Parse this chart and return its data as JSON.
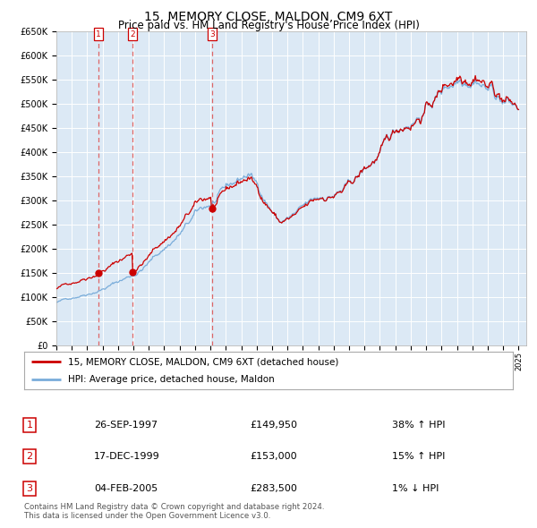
{
  "title": "15, MEMORY CLOSE, MALDON, CM9 6XT",
  "subtitle": "Price paid vs. HM Land Registry's House Price Index (HPI)",
  "title_fontsize": 10,
  "subtitle_fontsize": 8.5,
  "ylim": [
    0,
    650000
  ],
  "yticks": [
    0,
    50000,
    100000,
    150000,
    200000,
    250000,
    300000,
    350000,
    400000,
    450000,
    500000,
    550000,
    600000,
    650000
  ],
  "ytick_labels": [
    "£0",
    "£50K",
    "£100K",
    "£150K",
    "£200K",
    "£250K",
    "£300K",
    "£350K",
    "£400K",
    "£450K",
    "£500K",
    "£550K",
    "£600K",
    "£650K"
  ],
  "xlim_start": 1995.0,
  "xlim_end": 2025.5,
  "plot_bg_color": "#dce9f5",
  "grid_color": "#ffffff",
  "red_line_color": "#cc0000",
  "blue_line_color": "#7aadda",
  "marker_color": "#cc0000",
  "vline_color": "#dd6666",
  "transactions": [
    {
      "num": 1,
      "date": "26-SEP-1997",
      "price": 149950,
      "pct": "38%",
      "dir": "↑",
      "year": 1997.73
    },
    {
      "num": 2,
      "date": "17-DEC-1999",
      "price": 153000,
      "pct": "15%",
      "dir": "↑",
      "year": 1999.96
    },
    {
      "num": 3,
      "date": "04-FEB-2005",
      "price": 283500,
      "pct": "1%",
      "dir": "↓",
      "year": 2005.09
    }
  ],
  "legend_label_red": "15, MEMORY CLOSE, MALDON, CM9 6XT (detached house)",
  "legend_label_blue": "HPI: Average price, detached house, Maldon",
  "footer_text": "Contains HM Land Registry data © Crown copyright and database right 2024.\nThis data is licensed under the Open Government Licence v3.0."
}
